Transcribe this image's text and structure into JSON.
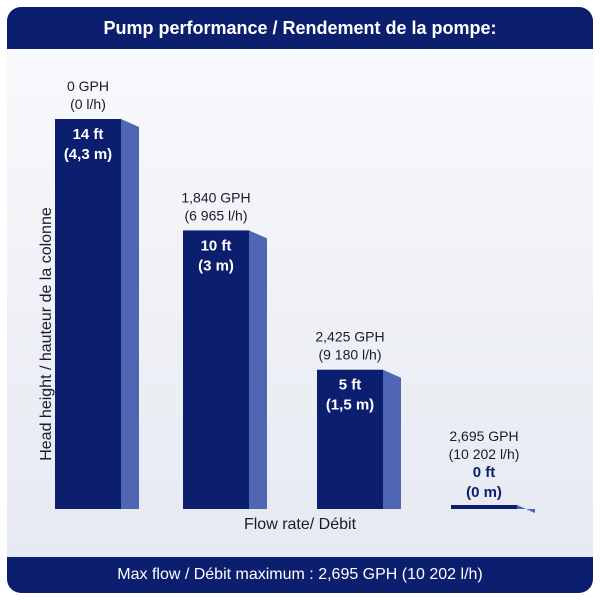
{
  "title": "Pump performance / Rendement de la pompe:",
  "footer": "Max flow / Débit maximum : 2,695 GPH (10 202 l/h)",
  "colors": {
    "bar_front": "#0b1f6e",
    "bar_side": "#4e66b3",
    "header": "#0b1f6e"
  },
  "chart_data": {
    "type": "bar",
    "xlabel": "Flow rate/ Débit",
    "ylabel": "Head height / hauteur de la colonne",
    "ylim": [
      0,
      14
    ],
    "grid": false,
    "categories": [
      "0 GPH",
      "1,840 GPH",
      "2,425 GPH",
      "2,695 GPH"
    ],
    "category_sublabels": [
      "(0 l/h)",
      "(6 965 l/h)",
      "(9 180 l/h)",
      "(10 202 l/h)"
    ],
    "values": [
      14,
      10,
      5,
      0
    ],
    "value_labels": [
      "14 ft",
      "10 ft",
      "5 ft",
      "0 ft"
    ],
    "value_sublabels": [
      "(4,3 m)",
      "(3 m)",
      "(1,5 m)",
      "(0 m)"
    ]
  }
}
